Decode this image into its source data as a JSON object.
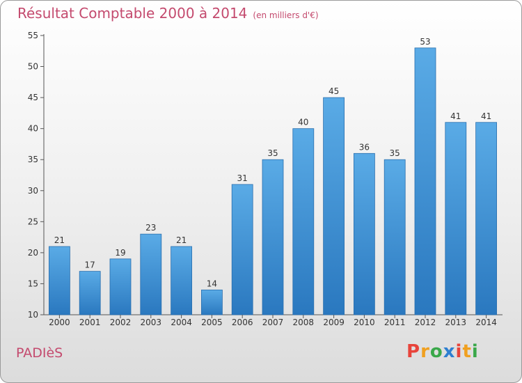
{
  "chart_data": {
    "type": "bar",
    "title": "Résultat Comptable 2000 à 2014",
    "subtitle": "(en milliers d'€)",
    "categories": [
      "2000",
      "2001",
      "2002",
      "2003",
      "2004",
      "2005",
      "2006",
      "2007",
      "2008",
      "2009",
      "2010",
      "2011",
      "2012",
      "2013",
      "2014"
    ],
    "values": [
      21,
      17,
      19,
      23,
      21,
      14,
      31,
      35,
      40,
      45,
      36,
      35,
      53,
      41,
      41
    ],
    "ylim": [
      10,
      55
    ],
    "yticks": [
      10,
      15,
      20,
      25,
      30,
      35,
      40,
      45,
      50,
      55
    ],
    "grid": false,
    "bar_color_top": "#5aabe6",
    "bar_color_bottom": "#2a78bf"
  },
  "footer": {
    "place": "PADIèS",
    "logo_text": "Proxiti",
    "logo_colors": [
      "#e8443b",
      "#f0a020",
      "#3aa84a",
      "#2e7fd0",
      "#e8443b",
      "#f0a020",
      "#3aa84a"
    ]
  }
}
